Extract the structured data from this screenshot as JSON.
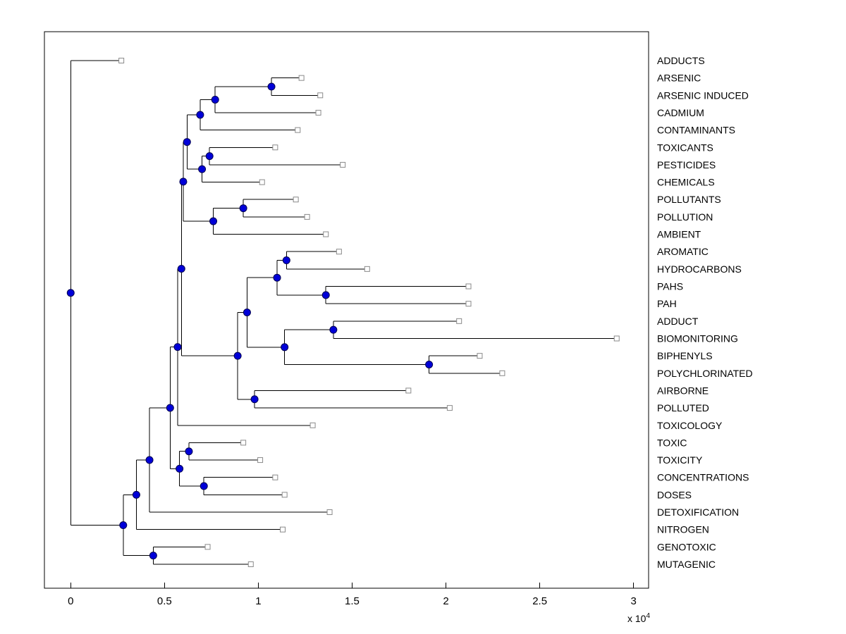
{
  "canvas": {
    "background": "#FFFFFF"
  },
  "chart_data": {
    "type": "dendrogram",
    "orientation": "left-to-right",
    "title": "",
    "xlabel": "",
    "ylabel": "",
    "x_unit_multiplier": 10000,
    "xlim": [
      -0.14,
      3.08
    ],
    "grid": false,
    "x_ticks": [
      {
        "v": 0,
        "label": "0"
      },
      {
        "v": 0.5,
        "label": "0.5"
      },
      {
        "v": 1,
        "label": "1"
      },
      {
        "v": 1.5,
        "label": "1.5"
      },
      {
        "v": 2,
        "label": "2"
      },
      {
        "v": 2.5,
        "label": "2.5"
      },
      {
        "v": 3,
        "label": "3"
      }
    ],
    "x_multiplier_label": "x 10",
    "x_multiplier_exp": "4",
    "leaves": [
      {
        "id": "L0",
        "label": "ADDUCTS",
        "x": 0.27
      },
      {
        "id": "L1",
        "label": "ARSENIC",
        "x": 1.23
      },
      {
        "id": "L2",
        "label": "ARSENIC INDUCED",
        "x": 1.33
      },
      {
        "id": "L3",
        "label": "CADMIUM",
        "x": 1.32
      },
      {
        "id": "L4",
        "label": "CONTAMINANTS",
        "x": 1.21
      },
      {
        "id": "L5",
        "label": "TOXICANTS",
        "x": 1.09
      },
      {
        "id": "L6",
        "label": "PESTICIDES",
        "x": 1.45
      },
      {
        "id": "L7",
        "label": "CHEMICALS",
        "x": 1.02
      },
      {
        "id": "L8",
        "label": "POLLUTANTS",
        "x": 1.2
      },
      {
        "id": "L9",
        "label": "POLLUTION",
        "x": 1.26
      },
      {
        "id": "L10",
        "label": "AMBIENT",
        "x": 1.36
      },
      {
        "id": "L11",
        "label": "AROMATIC",
        "x": 1.43
      },
      {
        "id": "L12",
        "label": "HYDROCARBONS",
        "x": 1.58
      },
      {
        "id": "L13",
        "label": "PAHS",
        "x": 2.12
      },
      {
        "id": "L14",
        "label": "PAH",
        "x": 2.12
      },
      {
        "id": "L15",
        "label": "ADDUCT",
        "x": 2.07
      },
      {
        "id": "L16",
        "label": "BIOMONITORING",
        "x": 2.91
      },
      {
        "id": "L17",
        "label": "BIPHENYLS",
        "x": 2.18
      },
      {
        "id": "L18",
        "label": "POLYCHLORINATED",
        "x": 2.3
      },
      {
        "id": "L19",
        "label": "AIRBORNE",
        "x": 1.8
      },
      {
        "id": "L20",
        "label": "POLLUTED",
        "x": 2.02
      },
      {
        "id": "L21",
        "label": "TOXICOLOGY",
        "x": 1.29
      },
      {
        "id": "L22",
        "label": "TOXIC",
        "x": 0.92
      },
      {
        "id": "L23",
        "label": "TOXICITY",
        "x": 1.01
      },
      {
        "id": "L24",
        "label": "CONCENTRATIONS",
        "x": 1.09
      },
      {
        "id": "L25",
        "label": "DOSES",
        "x": 1.14
      },
      {
        "id": "L26",
        "label": "DETOXIFICATION",
        "x": 1.38
      },
      {
        "id": "L27",
        "label": "NITROGEN",
        "x": 1.13
      },
      {
        "id": "L28",
        "label": "GENOTOXIC",
        "x": 0.73
      },
      {
        "id": "L29",
        "label": "MUTAGENIC",
        "x": 0.96
      }
    ],
    "internal_nodes": [
      {
        "id": "A1",
        "x": 1.07,
        "children": [
          "L1",
          "L2"
        ]
      },
      {
        "id": "A2",
        "x": 0.77,
        "children": [
          "A1",
          "L3"
        ]
      },
      {
        "id": "A3",
        "x": 0.69,
        "children": [
          "A2",
          "L4"
        ]
      },
      {
        "id": "A4",
        "x": 0.74,
        "children": [
          "L5",
          "L6"
        ]
      },
      {
        "id": "A5",
        "x": 0.7,
        "children": [
          "A4",
          "L7"
        ]
      },
      {
        "id": "A6",
        "x": 0.62,
        "children": [
          "A3",
          "A5"
        ]
      },
      {
        "id": "B1",
        "x": 0.92,
        "children": [
          "L8",
          "L9"
        ]
      },
      {
        "id": "B2",
        "x": 0.76,
        "children": [
          "B1",
          "L10"
        ]
      },
      {
        "id": "E1",
        "x": 0.6,
        "children": [
          "A6",
          "B2"
        ]
      },
      {
        "id": "C1",
        "x": 1.15,
        "children": [
          "L11",
          "L12"
        ]
      },
      {
        "id": "C2",
        "x": 1.36,
        "children": [
          "L13",
          "L14"
        ]
      },
      {
        "id": "C3",
        "x": 1.1,
        "children": [
          "C1",
          "C2"
        ]
      },
      {
        "id": "C4",
        "x": 1.4,
        "children": [
          "L15",
          "L16"
        ]
      },
      {
        "id": "C5",
        "x": 1.91,
        "children": [
          "L17",
          "L18"
        ]
      },
      {
        "id": "C6",
        "x": 1.14,
        "children": [
          "C4",
          "C5"
        ]
      },
      {
        "id": "C7",
        "x": 0.94,
        "children": [
          "C3",
          "C6"
        ]
      },
      {
        "id": "C8",
        "x": 0.98,
        "children": [
          "L19",
          "L20"
        ]
      },
      {
        "id": "C9",
        "x": 0.89,
        "children": [
          "C7",
          "C8"
        ]
      },
      {
        "id": "E2",
        "x": 0.59,
        "children": [
          "E1",
          "C9"
        ]
      },
      {
        "id": "E3",
        "x": 0.57,
        "children": [
          "E2",
          "L21"
        ]
      },
      {
        "id": "D1",
        "x": 0.63,
        "children": [
          "L22",
          "L23"
        ]
      },
      {
        "id": "D2",
        "x": 0.71,
        "children": [
          "L24",
          "L25"
        ]
      },
      {
        "id": "D3",
        "x": 0.58,
        "children": [
          "D1",
          "D2"
        ]
      },
      {
        "id": "E4",
        "x": 0.53,
        "children": [
          "E3",
          "D3"
        ]
      },
      {
        "id": "E5",
        "x": 0.42,
        "children": [
          "E4",
          "L26"
        ]
      },
      {
        "id": "E6",
        "x": 0.35,
        "children": [
          "E5",
          "L27"
        ]
      },
      {
        "id": "F1",
        "x": 0.44,
        "children": [
          "L28",
          "L29"
        ]
      },
      {
        "id": "E7",
        "x": 0.28,
        "children": [
          "E6",
          "F1"
        ]
      },
      {
        "id": "ROOT",
        "x": 0.0,
        "children": [
          "L0",
          "E7"
        ]
      }
    ],
    "root_id": "ROOT",
    "style": {
      "line_color": "#000000",
      "axis_color": "#000000",
      "text_color": "#000000",
      "node_fill": "#0000D8",
      "node_edge": "#000050",
      "leaf_fill": "#FFFFFF",
      "leaf_edge": "#8A8A8A"
    }
  }
}
